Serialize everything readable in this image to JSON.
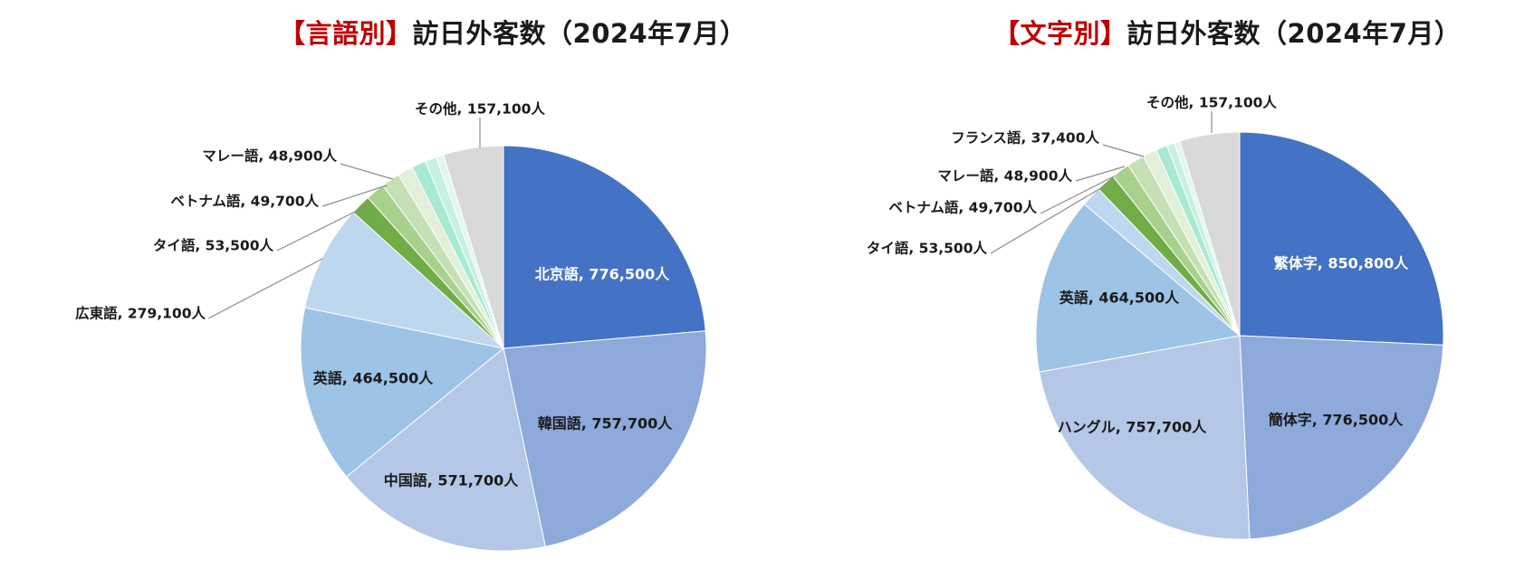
{
  "titles": {
    "left": {
      "accent": "【言語別】",
      "main": "訪日外客数（2024年7月）"
    },
    "right": {
      "accent": "【文字別】",
      "main": "訪日外客数（2024年7月）"
    }
  },
  "chart_data": [
    {
      "type": "pie",
      "title": "【言語別】訪日外客数（2024年7月）",
      "slices": [
        {
          "name": "北京語",
          "value": 776500,
          "label": "北京語, 776,500人",
          "color": "#4472c4",
          "label_color": "#ffffff"
        },
        {
          "name": "韓国語",
          "value": 757700,
          "label": "韓国語, 757,700人",
          "color": "#8eaadb"
        },
        {
          "name": "中国語",
          "value": 571700,
          "label": "中国語, 571,700人",
          "color": "#b4c7e7"
        },
        {
          "name": "英語",
          "value": 464500,
          "label": "英語, 464,500人",
          "color": "#9dc3e6"
        },
        {
          "name": "広東語",
          "value": 279100,
          "label": "広東語, 279,100人",
          "color": "#bdd7ee"
        },
        {
          "name": "タイ語",
          "value": 53500,
          "label": "タイ語, 53,500人",
          "color": "#70ad47"
        },
        {
          "name": "ベトナム語",
          "value": 49700,
          "label": "ベトナム語, 49,700人",
          "color": "#a9d18e"
        },
        {
          "name": "マレー語",
          "value": 48900,
          "label": "マレー語, 48,900人",
          "color": "#c5e0b4"
        },
        {
          "name": "",
          "value": 40000,
          "label": "",
          "color": "#e2efd9"
        },
        {
          "name": "",
          "value": 37400,
          "label": "",
          "color": "#a8ead1"
        },
        {
          "name": "",
          "value": 30000,
          "label": "",
          "color": "#c6f1e0"
        },
        {
          "name": "",
          "value": 20000,
          "label": "",
          "color": "#e3f7ee"
        },
        {
          "name": "その他",
          "value": 157100,
          "label": "その他, 157,100人",
          "color": "#d9d9d9"
        }
      ]
    },
    {
      "type": "pie",
      "title": "【文字別】訪日外客数（2024年7月）",
      "slices": [
        {
          "name": "繁体字",
          "value": 850800,
          "label": "繁体字, 850,800人",
          "color": "#4472c4",
          "label_color": "#ffffff"
        },
        {
          "name": "簡体字",
          "value": 776500,
          "label": "簡体字, 776,500人",
          "color": "#8eaadb"
        },
        {
          "name": "ハングル",
          "value": 757700,
          "label": "ハングル, 757,700人",
          "color": "#b4c7e7"
        },
        {
          "name": "英語",
          "value": 464500,
          "label": "英語, 464,500人",
          "color": "#9dc3e6"
        },
        {
          "name": "タイ語",
          "value": 53500,
          "label": "タイ語, 53,500人",
          "color": "#bdd7ee"
        },
        {
          "name": "ベトナム語",
          "value": 49700,
          "label": "ベトナム語, 49,700人",
          "color": "#70ad47"
        },
        {
          "name": "マレー語",
          "value": 48900,
          "label": "マレー語, 48,900人",
          "color": "#a9d18e"
        },
        {
          "name": "",
          "value": 45000,
          "label": "",
          "color": "#c5e0b4"
        },
        {
          "name": "フランス語",
          "value": 37400,
          "label": "フランス語, 37,400人",
          "color": "#e2efd9"
        },
        {
          "name": "",
          "value": 30000,
          "label": "",
          "color": "#a8ead1"
        },
        {
          "name": "",
          "value": 20000,
          "label": "",
          "color": "#c6f1e0"
        },
        {
          "name": "",
          "value": 15000,
          "label": "",
          "color": "#e3f7ee"
        },
        {
          "name": "その他",
          "value": 157100,
          "label": "その他, 157,100人",
          "color": "#d9d9d9"
        }
      ]
    }
  ]
}
